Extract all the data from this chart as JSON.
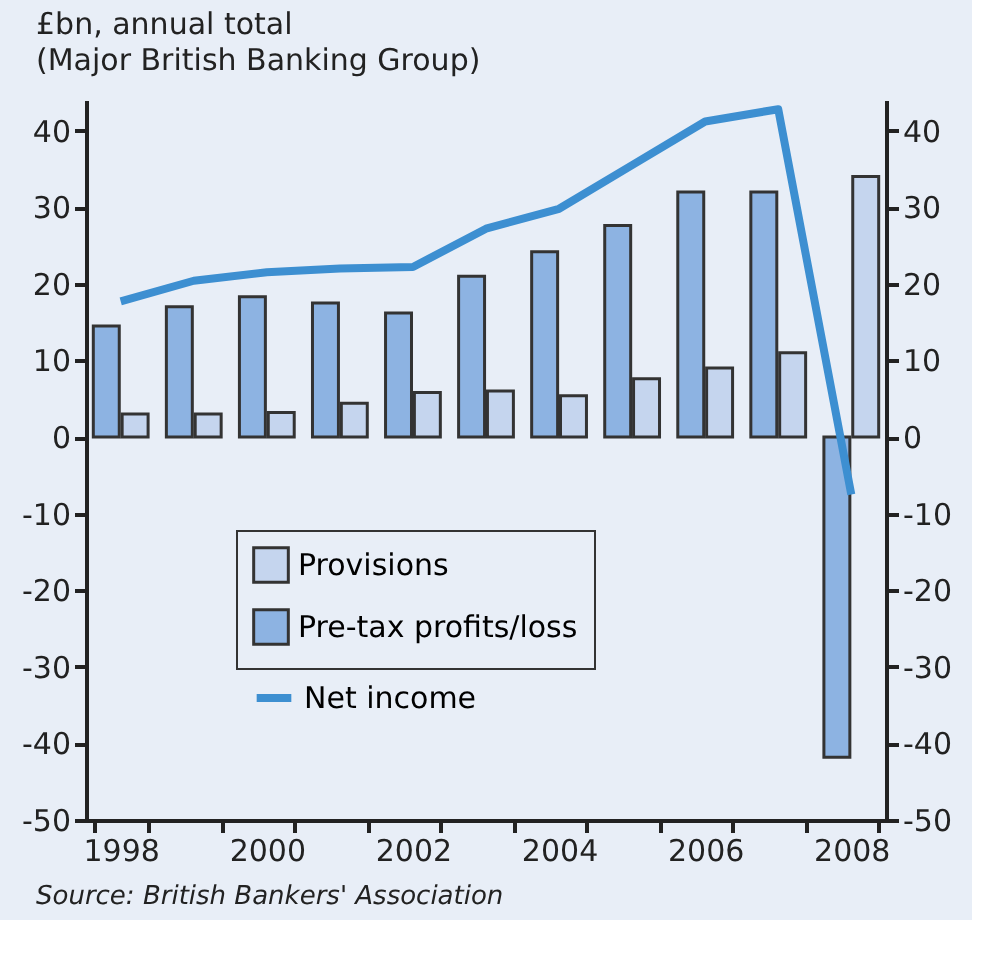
{
  "chart_data": {
    "type": "bar",
    "title": "£bn, annual total",
    "subtitle": "(Major British Banking Group)",
    "categories": [
      "1998",
      null,
      "2000",
      null,
      "2002",
      null,
      "2004",
      null,
      "2006",
      null,
      "2008"
    ],
    "series": [
      {
        "name": "Provisions",
        "color": "#c5d5ee",
        "values": [
          3,
          3,
          3.2,
          4.4,
          5.8,
          6,
          5.4,
          7.6,
          9,
          11,
          34
        ]
      },
      {
        "name": "Pre-tax profits/loss",
        "color": "#8db3e2",
        "values": [
          14.5,
          17,
          18.3,
          17.5,
          16.2,
          21,
          24.2,
          27.6,
          32,
          32,
          -41.8
        ]
      },
      {
        "name": "Net income",
        "type": "line",
        "color": "#3d8fd1",
        "values": [
          17.7,
          20.4,
          21.5,
          22,
          22.2,
          27.2,
          29.8,
          35.5,
          41.2,
          42.8,
          -7.5
        ]
      }
    ],
    "ylim": [
      -50,
      44
    ],
    "yticks": [
      -50,
      -40,
      -30,
      -20,
      -10,
      0,
      10,
      20,
      30,
      40
    ],
    "y2lim": [
      -50,
      44
    ],
    "y2ticks": [
      -50,
      -40,
      -30,
      -20,
      -10,
      0,
      10,
      20,
      30,
      40
    ],
    "legend": "left",
    "grid": false,
    "annotations": [
      "Source: British Bankers' Association"
    ]
  }
}
